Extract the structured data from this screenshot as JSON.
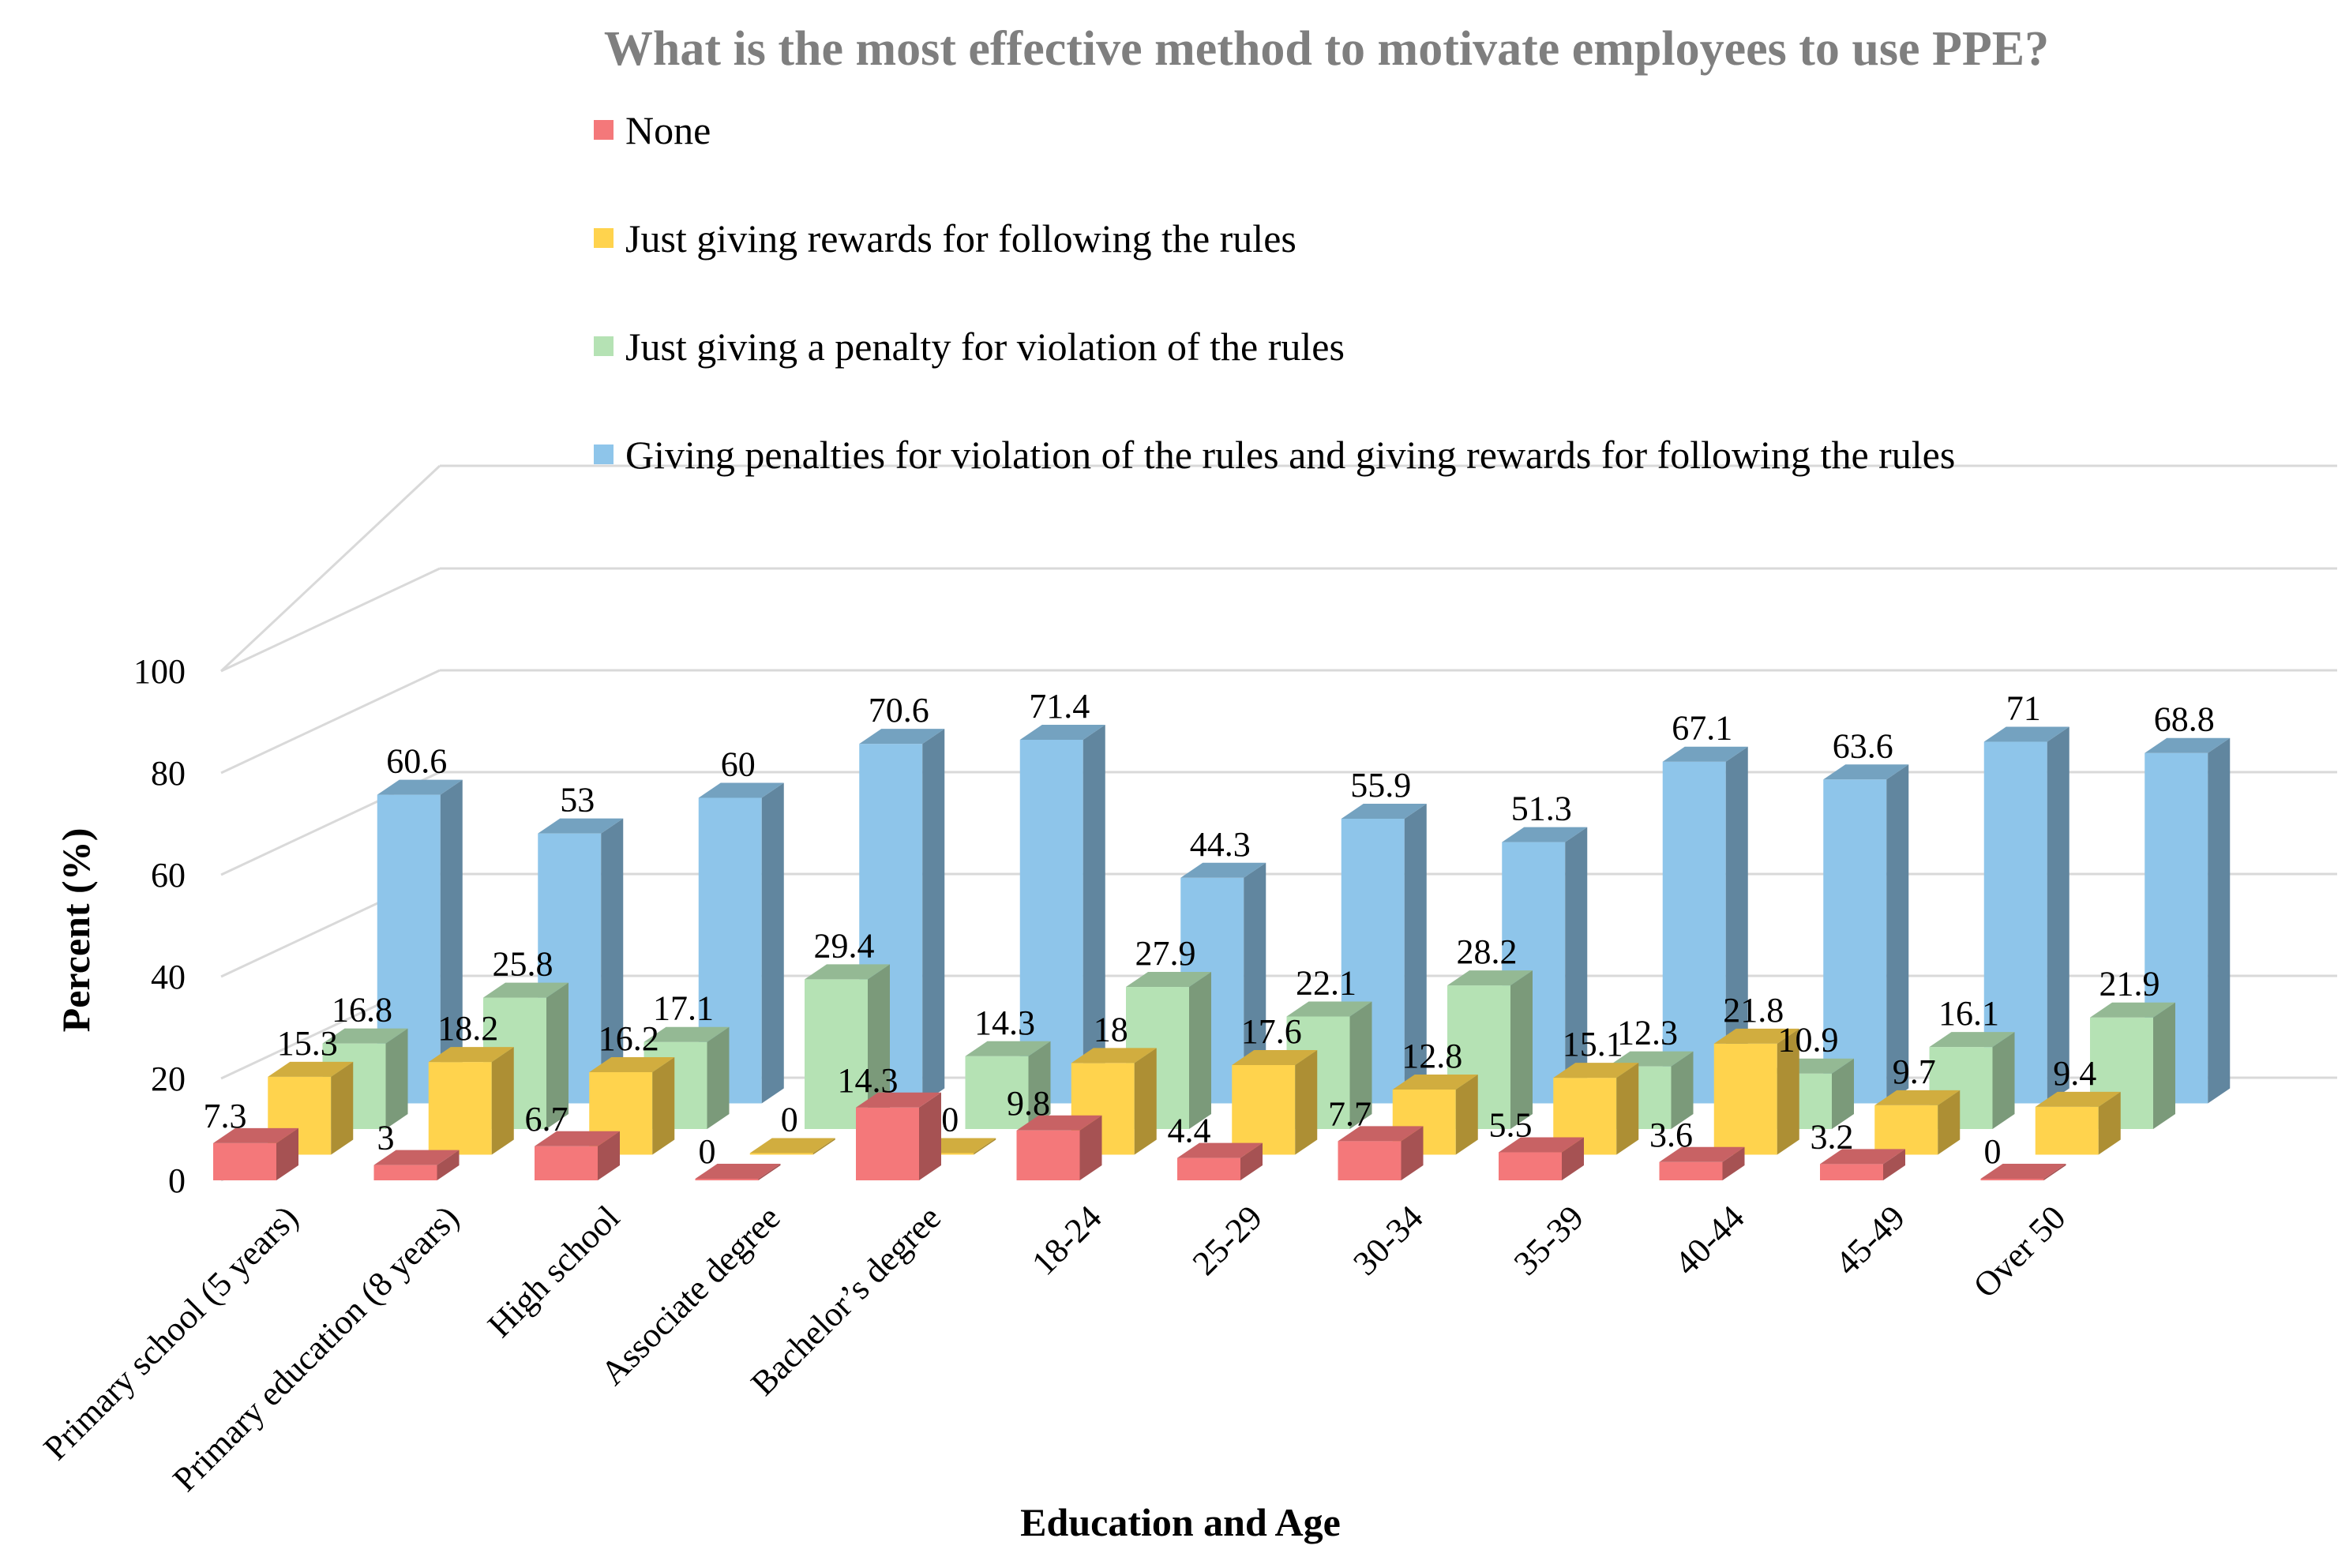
{
  "chart_data": {
    "type": "bar",
    "variant": "3d-clustered-column",
    "title": "What is the most effective method to motivate employees to use PPE?",
    "xlabel": "Education and Age",
    "ylabel": "Percent (%)",
    "ylim": [
      0,
      100
    ],
    "yticks": [
      0,
      20,
      40,
      60,
      80,
      100
    ],
    "grid": true,
    "legend_position": "top",
    "categories": [
      "Primary school (5 years)",
      "Primary education (8 years)",
      "High school",
      "Associate degree",
      "Bachelor’s degree",
      "18-24",
      "25-29",
      "30-34",
      "35-39",
      "40-44",
      "45-49",
      "Over 50"
    ],
    "series": [
      {
        "name": "None",
        "color": "#f4787a",
        "values": [
          7.3,
          3,
          6.7,
          0,
          14.3,
          9.8,
          4.4,
          7.7,
          5.5,
          3.6,
          3.2,
          0
        ]
      },
      {
        "name": "Just giving rewards for following the rules",
        "color": "#ffd34d",
        "values": [
          15.3,
          18.2,
          16.2,
          0,
          0,
          18,
          17.6,
          12.8,
          15.1,
          21.8,
          9.7,
          9.4
        ]
      },
      {
        "name": "Just giving a penalty for violation of the rules",
        "color": "#b5e2b4",
        "values": [
          16.8,
          25.8,
          17.1,
          29.4,
          14.3,
          27.9,
          22.1,
          28.2,
          12.3,
          10.9,
          16.1,
          21.9
        ]
      },
      {
        "name": "Giving penalties for violation of the rules and giving rewards for following the rules",
        "color": "#8ec5ea",
        "values": [
          60.6,
          53,
          60,
          70.6,
          71.4,
          44.3,
          55.9,
          51.3,
          67.1,
          63.6,
          71,
          68.8
        ]
      }
    ]
  }
}
